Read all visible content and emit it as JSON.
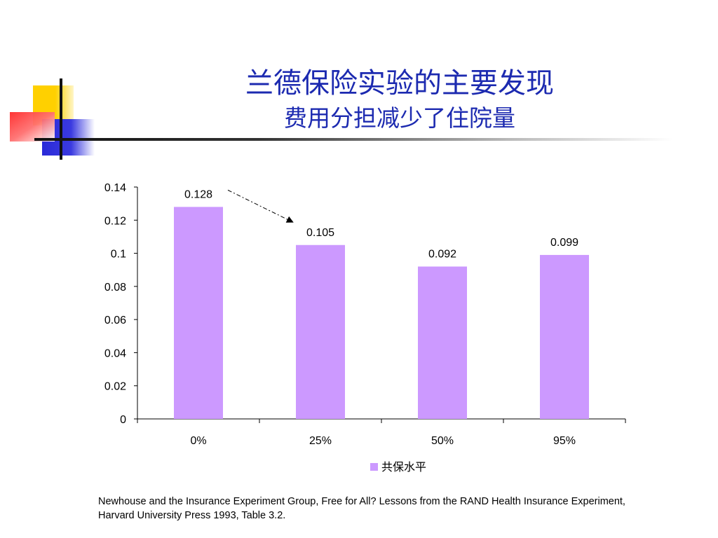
{
  "slide": {
    "title": "兰德保险实验的主要发现",
    "subtitle": "费用分担减少了住院量",
    "footnote": "Newhouse and the Insurance Experiment Group, Free for All? Lessons from the RAND Health Insurance Experiment, Harvard University Press 1993, Table 3.2."
  },
  "chart_data": {
    "type": "bar",
    "categories": [
      "0%",
      "25%",
      "50%",
      "95%"
    ],
    "series": [
      {
        "name": "共保水平",
        "values": [
          0.128,
          0.105,
          0.092,
          0.099
        ],
        "color": "#cc99ff"
      }
    ],
    "data_labels": [
      "0.128",
      "0.105",
      "0.092",
      "0.099"
    ],
    "yticks": [
      "0",
      "0.02",
      "0.04",
      "0.06",
      "0.08",
      "0.1",
      "0.12",
      "0.14"
    ],
    "ylim": [
      0,
      0.14
    ],
    "grid": false,
    "legend_position": "bottom",
    "annotation": "dashed arrow from 0% bar toward 25% bar"
  }
}
